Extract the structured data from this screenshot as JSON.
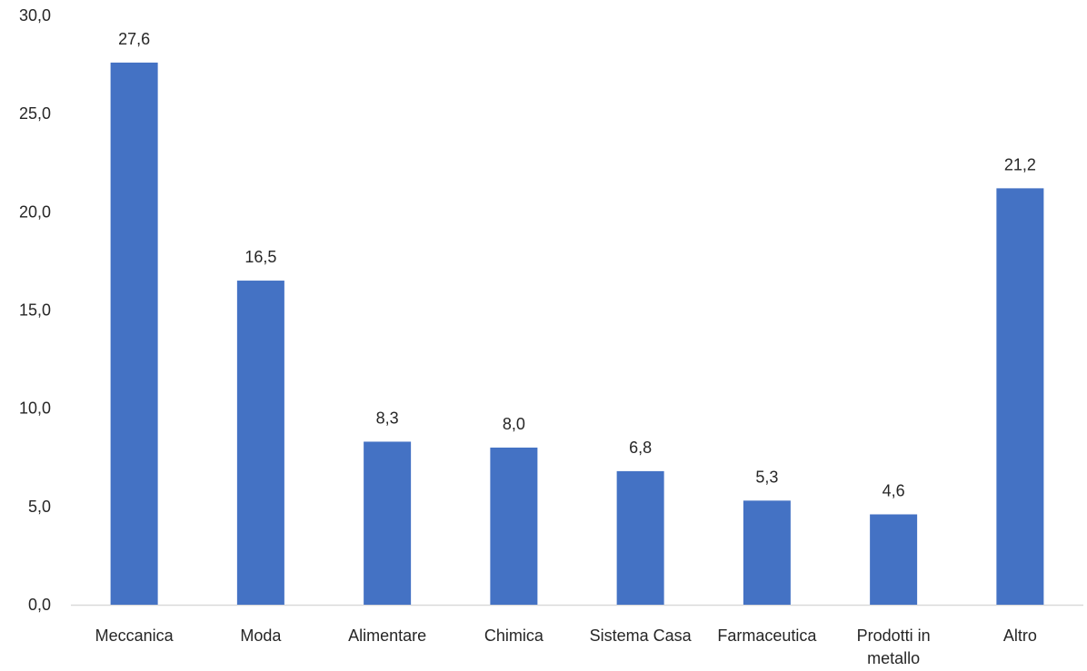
{
  "chart_data": {
    "type": "bar",
    "title": "",
    "xlabel": "",
    "ylabel": "",
    "categories": [
      "Meccanica",
      "Moda",
      "Alimentare",
      "Chimica",
      "Sistema Casa",
      "Farmaceutica",
      "Prodotti in metallo",
      "Altro"
    ],
    "category_lines": [
      [
        "Meccanica"
      ],
      [
        "Moda"
      ],
      [
        "Alimentare"
      ],
      [
        "Chimica"
      ],
      [
        "Sistema Casa"
      ],
      [
        "Farmaceutica"
      ],
      [
        "Prodotti in",
        "metallo"
      ],
      [
        "Altro"
      ]
    ],
    "values": [
      27.6,
      16.5,
      8.3,
      8.0,
      6.8,
      5.3,
      4.6,
      21.2
    ],
    "data_labels": [
      "27,6",
      "16,5",
      "8,3",
      "8,0",
      "6,8",
      "5,3",
      "4,6",
      "21,2"
    ],
    "ylim": [
      0,
      30
    ],
    "yticks": [
      0,
      5,
      10,
      15,
      20,
      25,
      30
    ],
    "ytick_labels": [
      "0,0",
      "5,0",
      "10,0",
      "15,0",
      "20,0",
      "25,0",
      "30,0"
    ],
    "grid": false,
    "legend": "none",
    "bar_color": "#4472c4",
    "axis_color": "#d9d9d9",
    "text_color": "#262626"
  }
}
